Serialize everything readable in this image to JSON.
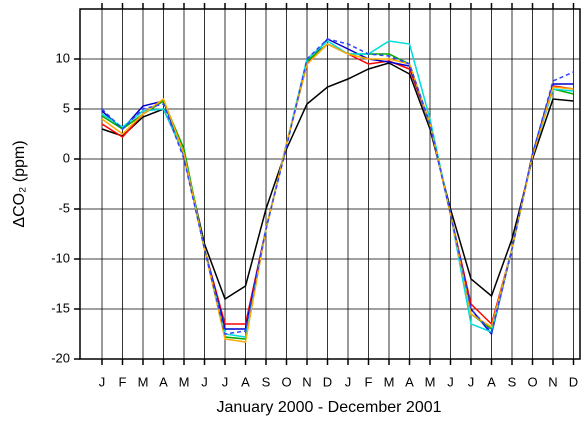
{
  "chart_data": {
    "type": "line",
    "x_label": "January 2000 - December 2001",
    "y_label": "ΔCO₂ (ppm)",
    "categories": [
      "J",
      "F",
      "M",
      "A",
      "M",
      "J",
      "J",
      "A",
      "S",
      "O",
      "N",
      "D",
      "J",
      "F",
      "M",
      "A",
      "M",
      "J",
      "J",
      "A",
      "S",
      "O",
      "N",
      "D"
    ],
    "ylim": [
      -20,
      15
    ],
    "yticks": [
      -20,
      -15,
      -10,
      -5,
      0,
      5,
      10
    ],
    "grid": true,
    "series": [
      {
        "color": "#000000",
        "values": [
          3,
          2.3,
          4.2,
          5,
          0.5,
          -8.5,
          -14,
          -12.7,
          -5,
          1,
          5.5,
          7.2,
          8,
          9,
          9.6,
          8.5,
          3,
          -5,
          -12,
          -13.7,
          -8,
          0,
          6,
          5.8
        ]
      },
      {
        "color": "#ff0000",
        "values": [
          3.5,
          2.2,
          4.5,
          5.8,
          0.5,
          -9,
          -16.5,
          -16.5,
          -7,
          1.5,
          9.5,
          11.5,
          10.5,
          9.5,
          9.8,
          9,
          3.5,
          -5.5,
          -14.5,
          -16.5,
          -9,
          0.5,
          7.3,
          7
        ]
      },
      {
        "color": "#0000cc",
        "values": [
          4.8,
          3,
          5.3,
          5.8,
          0.3,
          -9,
          -17,
          -17,
          -7,
          1.5,
          9.5,
          12,
          11,
          10,
          9.7,
          9.3,
          3.5,
          -5.5,
          -15,
          -17.5,
          -9,
          0.5,
          7.5,
          7.5
        ]
      },
      {
        "color": "#00aa00",
        "values": [
          4.3,
          3,
          4.5,
          5.8,
          1,
          -9,
          -17.8,
          -18,
          -7,
          1.5,
          9.8,
          11.5,
          10.5,
          10.5,
          10.5,
          9.5,
          3.5,
          -5.5,
          -15.5,
          -17,
          -9,
          0.3,
          7,
          6.5
        ]
      },
      {
        "color": "#00dddd",
        "values": [
          4.5,
          3.2,
          4.8,
          5,
          0.5,
          -9,
          -17.5,
          -17.8,
          -7,
          1.5,
          10,
          11.8,
          10.5,
          10.5,
          11.8,
          11.5,
          4,
          -5.5,
          -16.5,
          -17.3,
          -9,
          0.3,
          7,
          6.8
        ]
      },
      {
        "color": "#ffaa00",
        "values": [
          4,
          2.5,
          4.5,
          6,
          0.5,
          -9,
          -18,
          -18.3,
          -7,
          1.5,
          9.5,
          11.5,
          10.5,
          10,
          10,
          9.5,
          3.5,
          -5.5,
          -15.5,
          -16.8,
          -9,
          0.3,
          7.2,
          7
        ]
      },
      {
        "color": "#3344ff",
        "dashed": true,
        "values": [
          5,
          3,
          5,
          5.5,
          0,
          -9,
          -17.5,
          -17.2,
          -7,
          1.2,
          10,
          12,
          11.5,
          10.5,
          10.3,
          9.5,
          3.5,
          -5.5,
          -15,
          -17.3,
          -9,
          0.5,
          7.8,
          8.7
        ]
      }
    ]
  }
}
